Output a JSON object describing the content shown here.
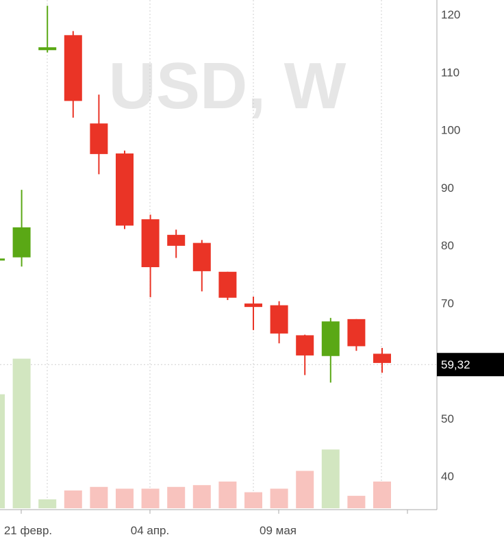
{
  "chart_data": {
    "type": "candlestick",
    "watermark": "USD, W",
    "y_axis": {
      "ticks": [
        40,
        50,
        60,
        70,
        80,
        90,
        100,
        110,
        120
      ],
      "tick_labels": [
        "40",
        "50",
        "",
        "70",
        "80",
        "90",
        "100",
        "110",
        "120"
      ],
      "range": [
        36,
        122
      ]
    },
    "x_axis": {
      "labels": [
        "21 февр.",
        "04 апр.",
        "09 мая"
      ]
    },
    "current_price": {
      "value": 59.32,
      "label": "59,32"
    },
    "colors": {
      "up": "#5aa815",
      "down": "#ea3426",
      "volume_up": "#d2e6c0",
      "volume_down": "#f8c3be",
      "grid": "#cfcfcf",
      "axis": "#a8a8a8",
      "watermark": "#e6e6e6",
      "price_tag_bg": "#000000"
    },
    "candles": [
      {
        "open": 77.5,
        "high": 77.7,
        "low": 77.4,
        "close": 77.7,
        "volume": 0.64,
        "partial": true
      },
      {
        "open": 77.9,
        "high": 89.6,
        "low": 76.3,
        "close": 83.1,
        "volume": 0.84
      },
      {
        "open": 113.8,
        "high": 121.5,
        "low": 113.4,
        "close": 114.3,
        "volume": 0.05
      },
      {
        "open": 116.4,
        "high": 117.1,
        "low": 102.1,
        "close": 105.0,
        "volume": 0.1
      },
      {
        "open": 101.1,
        "high": 106.1,
        "low": 92.3,
        "close": 95.8,
        "volume": 0.12
      },
      {
        "open": 95.9,
        "high": 96.4,
        "low": 82.8,
        "close": 83.4,
        "volume": 0.11
      },
      {
        "open": 84.5,
        "high": 85.3,
        "low": 71.0,
        "close": 76.2,
        "volume": 0.11
      },
      {
        "open": 81.8,
        "high": 82.7,
        "low": 77.8,
        "close": 79.9,
        "volume": 0.12
      },
      {
        "open": 80.4,
        "high": 80.9,
        "low": 72.0,
        "close": 75.5,
        "volume": 0.13
      },
      {
        "open": 75.4,
        "high": 75.4,
        "low": 70.5,
        "close": 70.9,
        "volume": 0.15
      },
      {
        "open": 69.9,
        "high": 71.1,
        "low": 65.3,
        "close": 69.3,
        "volume": 0.09
      },
      {
        "open": 69.6,
        "high": 70.3,
        "low": 63.0,
        "close": 64.7,
        "volume": 0.11
      },
      {
        "open": 64.4,
        "high": 64.5,
        "low": 57.5,
        "close": 60.9,
        "volume": 0.21
      },
      {
        "open": 60.8,
        "high": 67.4,
        "low": 56.2,
        "close": 66.8,
        "volume": 0.33
      },
      {
        "open": 67.2,
        "high": 67.2,
        "low": 61.7,
        "close": 62.5,
        "volume": 0.07
      },
      {
        "open": 61.2,
        "high": 62.2,
        "low": 57.9,
        "close": 59.6,
        "volume": 0.15
      }
    ]
  }
}
